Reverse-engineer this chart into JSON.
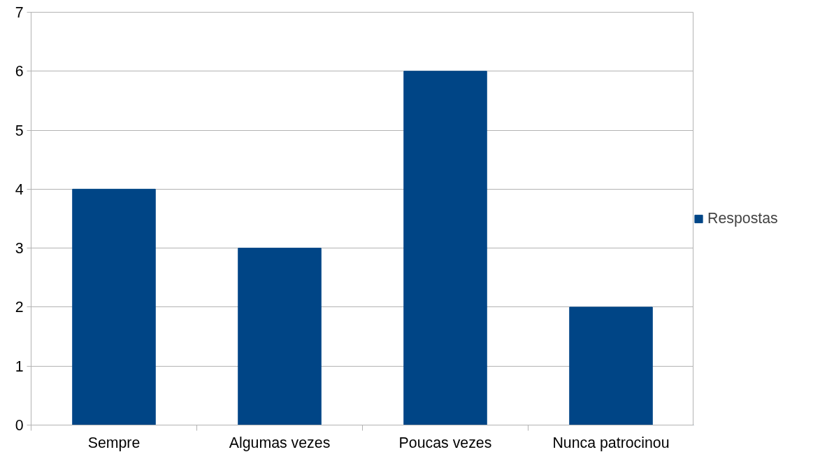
{
  "chart_data": {
    "type": "bar",
    "categories": [
      "Sempre",
      "Algumas vezes",
      "Poucas vezes",
      "Nunca patrocinou"
    ],
    "series": [
      {
        "name": "Respostas",
        "color": "#004586",
        "values": [
          4,
          3,
          6,
          2
        ]
      }
    ],
    "ylim": [
      0,
      7
    ],
    "yticks": [
      0,
      1,
      2,
      3,
      4,
      5,
      6,
      7
    ],
    "grid": "y",
    "legend": "right"
  }
}
